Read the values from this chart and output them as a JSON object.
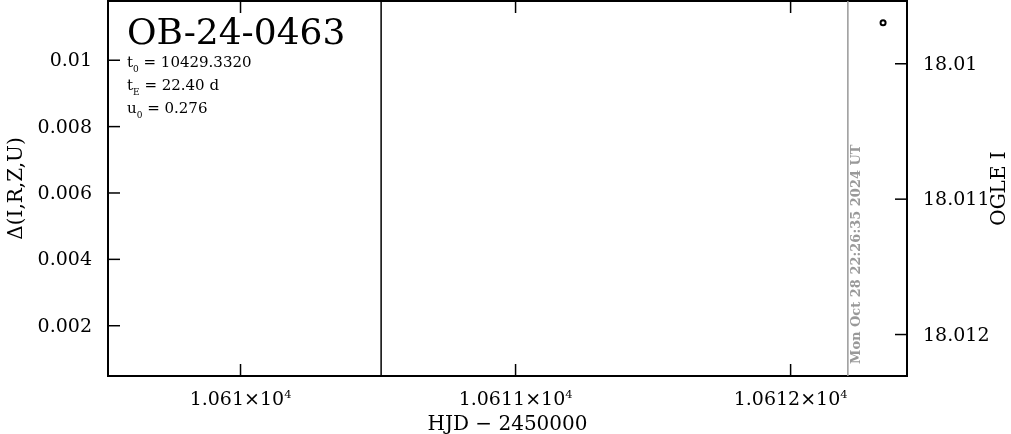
{
  "chart_data": {
    "type": "scatter",
    "title": "OB-24-0463",
    "annotations": [
      "t$_{0}$ = 10429.3320",
      "t$_{E}$ = 22.40 d",
      "u$_{0}$ = 0.276",
      {
        "text": "Mon Oct 28 22:26:35 2024 UT",
        "x": 10612.21
      }
    ],
    "xlabel": "HJD − 2450000",
    "ylabel": "Δ(I,R,Z,U)",
    "y2label": "OGLE I",
    "series": [
      {
        "axis": "y2",
        "color": "#000000",
        "x": [
          10612.338
        ],
        "values": [
          18.0097
        ]
      }
    ],
    "marker": "circle",
    "xlim": [
      10609.52,
      10612.425
    ],
    "xticks": [
      {
        "value": 10610,
        "label": "1.061×10$^{4}$"
      },
      {
        "value": 10611,
        "label": "1.0611×10$^{4}$"
      },
      {
        "value": 10612,
        "label": "1.0612×10$^{4}$"
      }
    ],
    "ylim": [
      0.00047,
      0.01177
    ],
    "yticks": [
      0.002,
      0.004,
      0.006,
      0.008,
      0.01
    ],
    "y2lim": [
      18.01231,
      18.00954
    ],
    "y2ticks": [
      18.01,
      18.011,
      18.012
    ],
    "ref_lines": [
      {
        "axis": "x",
        "value": 10610.513,
        "color": "#000000"
      },
      {
        "axis": "x",
        "value": 10612.21,
        "color": "#999999"
      }
    ],
    "grid": false
  }
}
